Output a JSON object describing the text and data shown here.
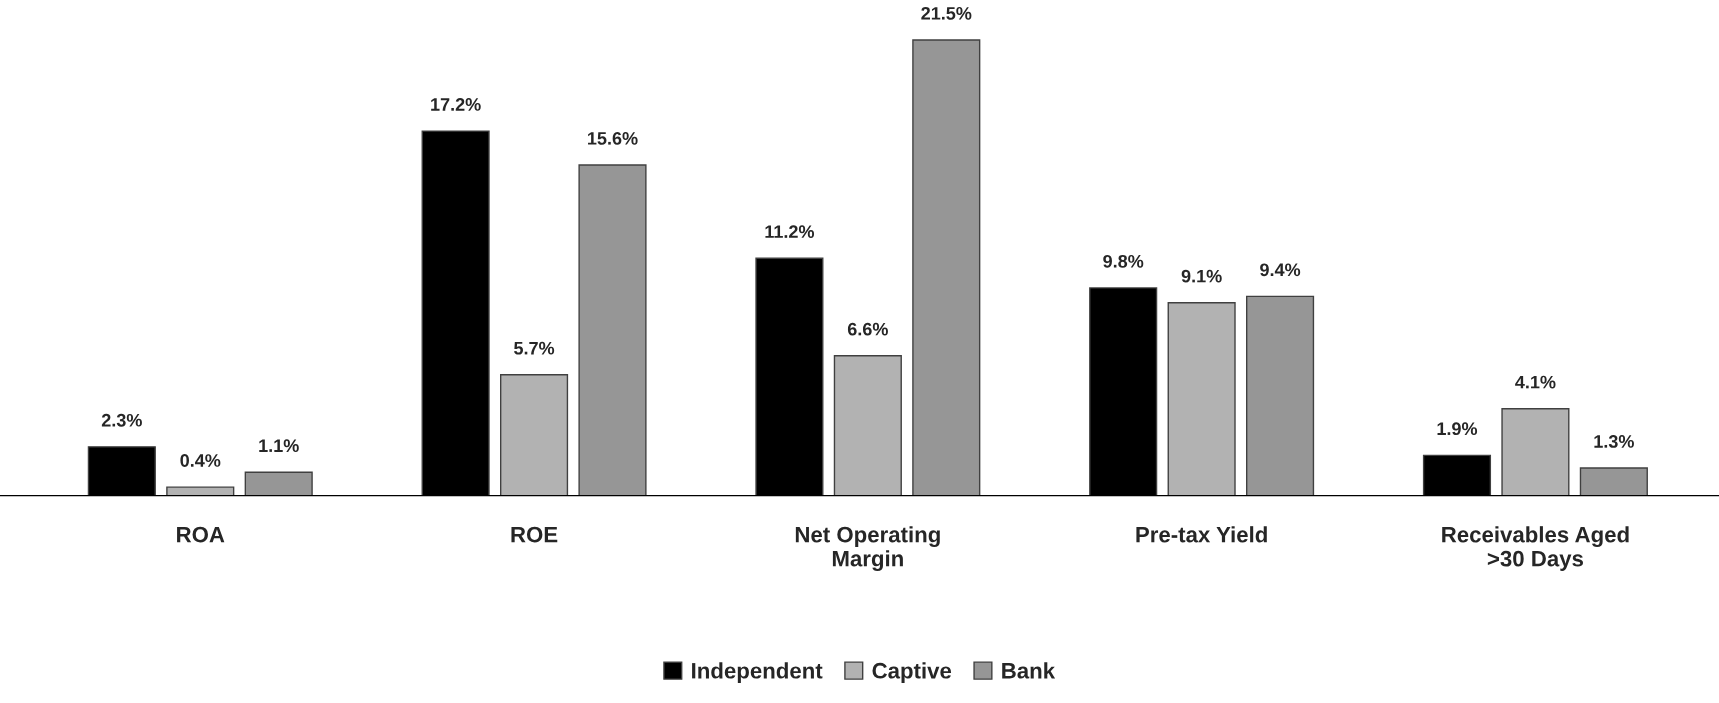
{
  "chart_data": {
    "type": "bar",
    "categories": [
      "ROA",
      "ROE",
      "Net Operating\nMargin",
      "Pre-tax Yield",
      "Receivables Aged\n>30 Days"
    ],
    "series": [
      {
        "name": "Independent",
        "color": "#000000",
        "values": [
          2.3,
          17.2,
          11.2,
          9.8,
          1.9
        ],
        "value_labels": [
          "2.3%",
          "17.2%",
          "11.2%",
          "9.8%",
          "1.9%"
        ]
      },
      {
        "name": "Captive",
        "color": "#b2b2b2",
        "values": [
          0.4,
          5.7,
          6.6,
          9.1,
          4.1
        ],
        "value_labels": [
          "0.4%",
          "5.7%",
          "6.6%",
          "9.1%",
          "4.1%"
        ]
      },
      {
        "name": "Bank",
        "color": "#969696",
        "values": [
          1.1,
          15.6,
          21.5,
          9.4,
          1.3
        ],
        "value_labels": [
          "1.1%",
          "15.6%",
          "21.5%",
          "9.4%",
          "1.3%"
        ]
      }
    ],
    "legend": "bottom",
    "grid": false,
    "tick_labels": "x"
  }
}
